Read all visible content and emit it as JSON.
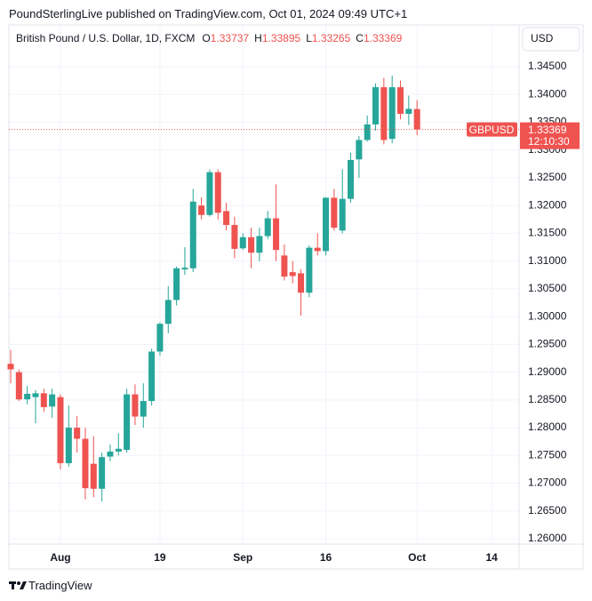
{
  "header": {
    "text": "PoundSterlingLive published on TradingView.com, Oct 01, 2024 09:49 UTC+1"
  },
  "legend": {
    "symbol": "British Pound / U.S. Dollar, 1D, FXCM",
    "labels": [
      "O",
      "H",
      "L",
      "C"
    ]
  },
  "currency": "USD",
  "price_tag": {
    "symbol": "GBPUSD",
    "countdown": "12:10:30"
  },
  "footer": {
    "brand": "TradingView"
  },
  "chart_data": {
    "type": "candlestick",
    "categories": [
      null,
      null,
      null,
      null,
      null,
      null,
      "Aug",
      null,
      null,
      null,
      null,
      null,
      null,
      null,
      null,
      null,
      null,
      null,
      "19",
      null,
      null,
      null,
      null,
      null,
      null,
      null,
      null,
      null,
      "Sep",
      null,
      null,
      null,
      null,
      null,
      null,
      null,
      null,
      null,
      "16",
      null,
      null,
      null,
      null,
      null,
      null,
      null,
      null,
      null,
      null,
      "Oct",
      null,
      null,
      null,
      null,
      null,
      null,
      null,
      null,
      "14"
    ],
    "open": [
      1.2915,
      1.29,
      1.2851,
      1.2855,
      1.2862,
      1.2838,
      1.2855,
      1.2736,
      1.28,
      1.278,
      1.2735,
      1.269,
      1.2748,
      1.2757,
      1.276,
      1.286,
      1.282,
      1.2848,
      1.2937,
      1.2987,
      1.303,
      1.3085,
      1.3087,
      1.32,
      1.3183,
      1.326,
      1.319,
      1.3165,
      1.3123,
      1.3143,
      1.3115,
      1.3145,
      1.3177,
      1.311,
      1.308,
      1.3078,
      1.3043,
      1.3124,
      1.3118,
      1.3214,
      1.3155,
      1.3212,
      1.3283,
      1.3318,
      1.3346,
      1.3413,
      1.332,
      1.3413,
      1.3365,
      1.33737,
      null,
      null,
      null,
      null,
      null,
      null,
      null,
      null,
      null
    ],
    "high": [
      1.294,
      1.2905,
      1.2875,
      1.2868,
      1.287,
      1.287,
      1.286,
      1.284,
      1.2821,
      1.28,
      1.2785,
      1.2755,
      1.277,
      1.279,
      1.287,
      1.2878,
      1.288,
      1.2942,
      1.299,
      1.3055,
      1.309,
      1.3125,
      1.323,
      1.3215,
      1.3265,
      1.3265,
      1.3205,
      1.318,
      1.315,
      1.316,
      1.316,
      1.319,
      1.3238,
      1.313,
      1.31,
      1.3085,
      1.3128,
      1.315,
      1.3215,
      1.323,
      1.3265,
      1.3295,
      1.3325,
      1.3362,
      1.342,
      1.343,
      1.3434,
      1.3425,
      1.3398,
      1.33895,
      null,
      null,
      null,
      null,
      null,
      null,
      null,
      null,
      null
    ],
    "low": [
      1.288,
      1.2848,
      1.2842,
      1.2808,
      1.2828,
      1.2818,
      1.2725,
      1.273,
      1.2755,
      1.2671,
      1.2675,
      1.2667,
      1.274,
      1.275,
      1.2755,
      1.2805,
      1.28,
      1.284,
      1.293,
      1.297,
      1.302,
      1.3075,
      1.308,
      1.3175,
      1.318,
      1.3175,
      1.3155,
      1.3105,
      1.312,
      1.3087,
      1.31,
      1.314,
      1.31,
      1.3065,
      1.306,
      1.3002,
      1.3035,
      1.311,
      1.311,
      1.3155,
      1.315,
      1.3205,
      1.325,
      1.3315,
      1.3335,
      1.331,
      1.3312,
      1.3355,
      1.3345,
      1.33265,
      null,
      null,
      null,
      null,
      null,
      null,
      null,
      null,
      null
    ],
    "close": [
      1.2905,
      1.2851,
      1.2861,
      1.2862,
      1.2837,
      1.286,
      1.2736,
      1.28,
      1.278,
      1.2691,
      1.269,
      1.2747,
      1.2757,
      1.2762,
      1.286,
      1.282,
      1.2848,
      1.2937,
      1.2987,
      1.303,
      1.3087,
      1.3088,
      1.3207,
      1.3183,
      1.326,
      1.3187,
      1.3165,
      1.3122,
      1.3143,
      1.3115,
      1.3145,
      1.3177,
      1.312,
      1.3072,
      1.3073,
      1.3043,
      1.3124,
      1.3118,
      1.3214,
      1.316,
      1.3212,
      1.3282,
      1.3318,
      1.3346,
      1.3413,
      1.3318,
      1.3413,
      1.3365,
      1.3374,
      1.33369,
      null,
      null,
      null,
      null,
      null,
      null,
      null,
      null,
      null
    ],
    "up_color": "#26a69a",
    "down_color": "#ef5350",
    "ylim": [
      1.25904,
      1.35252
    ],
    "yticks": [
      {
        "value": 1.26,
        "label": "1.26000"
      },
      {
        "value": 1.265,
        "label": "1.26500"
      },
      {
        "value": 1.27,
        "label": "1.27000"
      },
      {
        "value": 1.275,
        "label": "1.27500"
      },
      {
        "value": 1.28,
        "label": "1.28000"
      },
      {
        "value": 1.285,
        "label": "1.28500"
      },
      {
        "value": 1.29,
        "label": "1.29000"
      },
      {
        "value": 1.295,
        "label": "1.29500"
      },
      {
        "value": 1.3,
        "label": "1.30000"
      },
      {
        "value": 1.305,
        "label": "1.30500"
      },
      {
        "value": 1.31,
        "label": "1.31000"
      },
      {
        "value": 1.315,
        "label": "1.31500"
      },
      {
        "value": 1.32,
        "label": "1.32000"
      },
      {
        "value": 1.325,
        "label": "1.32500"
      },
      {
        "value": 1.33,
        "label": "1.33000"
      },
      {
        "value": 1.335,
        "label": "1.33500"
      },
      {
        "value": 1.34,
        "label": "1.34000"
      },
      {
        "value": 1.345,
        "label": "1.34500"
      }
    ],
    "grid": true
  }
}
